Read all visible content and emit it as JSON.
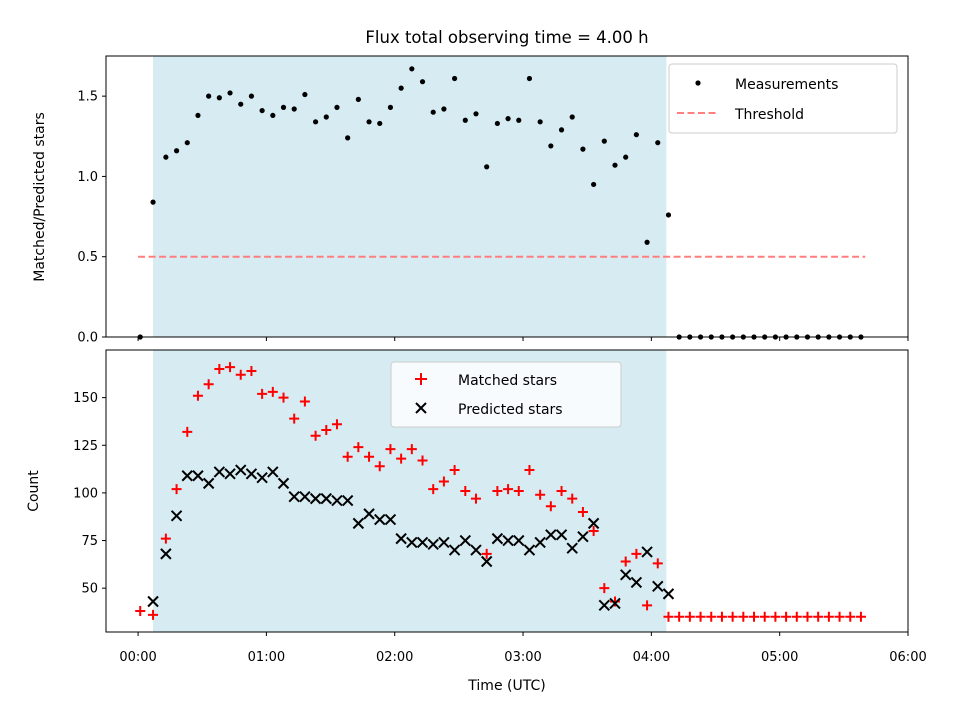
{
  "chart_data": [
    {
      "type": "scatter",
      "title": "Flux total observing time = 4.00 h",
      "ylabel": "Matched/Predicted stars",
      "xlabel": "",
      "ylim": [
        0,
        1.75
      ],
      "yticks": [
        "0.0",
        "0.5",
        "1.0",
        "1.5"
      ],
      "shaded_region": {
        "start": "00:07",
        "end": "04:07",
        "color": "#add8e6"
      },
      "legend": {
        "placement": "top-right",
        "items": [
          "Measurements",
          "Threshold"
        ]
      },
      "threshold": {
        "name": "Threshold",
        "value": 0.5,
        "x_range": [
          "00:00",
          "05:40"
        ],
        "color": "#ff7f7f"
      },
      "series": [
        {
          "name": "Measurements",
          "color": "#000000",
          "x": [
            "00:01",
            "00:07",
            "00:13",
            "00:18",
            "00:23",
            "00:28",
            "00:33",
            "00:38",
            "00:43",
            "00:48",
            "00:53",
            "00:58",
            "01:03",
            "01:08",
            "01:13",
            "01:18",
            "01:23",
            "01:28",
            "01:33",
            "01:38",
            "01:43",
            "01:48",
            "01:53",
            "01:58",
            "02:03",
            "02:08",
            "02:13",
            "02:18",
            "02:23",
            "02:28",
            "02:33",
            "02:38",
            "02:43",
            "02:48",
            "02:53",
            "02:58",
            "03:03",
            "03:08",
            "03:13",
            "03:18",
            "03:23",
            "03:28",
            "03:33",
            "03:38",
            "03:43",
            "03:48",
            "03:53",
            "03:58",
            "04:03",
            "04:08",
            "04:13",
            "04:18",
            "04:23",
            "04:28",
            "04:33",
            "04:38",
            "04:43",
            "04:48",
            "04:53",
            "04:58",
            "05:03",
            "05:08",
            "05:13",
            "05:18",
            "05:23",
            "05:28",
            "05:33",
            "05:38"
          ],
          "y": [
            0.0,
            0.84,
            1.12,
            1.16,
            1.21,
            1.38,
            1.5,
            1.49,
            1.52,
            1.45,
            1.5,
            1.41,
            1.38,
            1.43,
            1.42,
            1.51,
            1.34,
            1.37,
            1.43,
            1.24,
            1.48,
            1.34,
            1.33,
            1.43,
            1.55,
            1.67,
            1.59,
            1.4,
            1.42,
            1.61,
            1.35,
            1.39,
            1.06,
            1.33,
            1.36,
            1.35,
            1.61,
            1.34,
            1.19,
            1.29,
            1.37,
            1.17,
            0.95,
            1.22,
            1.07,
            1.12,
            1.26,
            0.59,
            1.21,
            0.76,
            0.0,
            0.0,
            0.0,
            0.0,
            0.0,
            0.0,
            0.0,
            0.0,
            0.0,
            0.0,
            0.0,
            0.0,
            0.0,
            0.0,
            0.0,
            0.0,
            0.0,
            0.0
          ]
        }
      ]
    },
    {
      "type": "scatter",
      "xlabel": "Time (UTC)",
      "ylabel": "Count",
      "ylim": [
        27,
        175
      ],
      "yticks": [
        "50",
        "75",
        "100",
        "125",
        "150"
      ],
      "xlim": [
        "23:45",
        "06:00"
      ],
      "xticks": [
        "00:00",
        "01:00",
        "02:00",
        "03:00",
        "04:00",
        "05:00",
        "06:00"
      ],
      "shaded_region": {
        "start": "00:07",
        "end": "04:07",
        "color": "#add8e6"
      },
      "legend": {
        "placement": "top-center",
        "items": [
          "Matched stars",
          "Predicted stars"
        ]
      },
      "series": [
        {
          "name": "Matched stars",
          "marker": "+",
          "color": "#ff0000",
          "x": [
            "00:01",
            "00:07",
            "00:13",
            "00:18",
            "00:23",
            "00:28",
            "00:33",
            "00:38",
            "00:43",
            "00:48",
            "00:53",
            "00:58",
            "01:03",
            "01:08",
            "01:13",
            "01:18",
            "01:23",
            "01:28",
            "01:33",
            "01:38",
            "01:43",
            "01:48",
            "01:53",
            "01:58",
            "02:03",
            "02:08",
            "02:13",
            "02:18",
            "02:23",
            "02:28",
            "02:33",
            "02:38",
            "02:43",
            "02:48",
            "02:53",
            "02:58",
            "03:03",
            "03:08",
            "03:13",
            "03:18",
            "03:23",
            "03:28",
            "03:33",
            "03:38",
            "03:43",
            "03:48",
            "03:53",
            "03:58",
            "04:03",
            "04:08",
            "04:13",
            "04:18",
            "04:23",
            "04:28",
            "04:33",
            "04:38",
            "04:43",
            "04:48",
            "04:53",
            "04:58",
            "05:03",
            "05:08",
            "05:13",
            "05:18",
            "05:23",
            "05:28",
            "05:33",
            "05:38"
          ],
          "y": [
            38,
            36,
            76,
            102,
            132,
            151,
            157,
            165,
            166,
            162,
            164,
            152,
            153,
            150,
            139,
            148,
            130,
            133,
            136,
            119,
            124,
            119,
            114,
            123,
            118,
            123,
            117,
            102,
            106,
            112,
            101,
            97,
            68,
            101,
            102,
            101,
            112,
            99,
            93,
            101,
            97,
            90,
            80,
            50,
            43,
            64,
            68,
            41,
            63,
            35,
            35,
            35,
            35,
            35,
            35,
            35,
            35,
            35,
            35,
            35,
            35,
            35,
            35,
            35,
            35,
            35,
            35,
            35
          ]
        },
        {
          "name": "Predicted stars",
          "marker": "x",
          "color": "#000000",
          "x": [
            "00:07",
            "00:13",
            "00:18",
            "00:23",
            "00:28",
            "00:33",
            "00:38",
            "00:43",
            "00:48",
            "00:53",
            "00:58",
            "01:03",
            "01:08",
            "01:13",
            "01:18",
            "01:23",
            "01:28",
            "01:33",
            "01:38",
            "01:43",
            "01:48",
            "01:53",
            "01:58",
            "02:03",
            "02:08",
            "02:13",
            "02:18",
            "02:23",
            "02:28",
            "02:33",
            "02:38",
            "02:43",
            "02:48",
            "02:53",
            "02:58",
            "03:03",
            "03:08",
            "03:13",
            "03:18",
            "03:23",
            "03:28",
            "03:33",
            "03:38",
            "03:43",
            "03:48",
            "03:53",
            "03:58",
            "04:03",
            "04:08"
          ],
          "y": [
            43,
            68,
            88,
            109,
            109,
            105,
            111,
            110,
            112,
            110,
            108,
            111,
            105,
            98,
            98,
            97,
            97,
            96,
            96,
            84,
            89,
            86,
            86,
            76,
            74,
            74,
            73,
            74,
            70,
            75,
            70,
            64,
            76,
            75,
            75,
            70,
            74,
            78,
            78,
            71,
            77,
            84,
            41,
            42,
            57,
            53,
            69,
            51,
            47
          ]
        }
      ]
    }
  ]
}
